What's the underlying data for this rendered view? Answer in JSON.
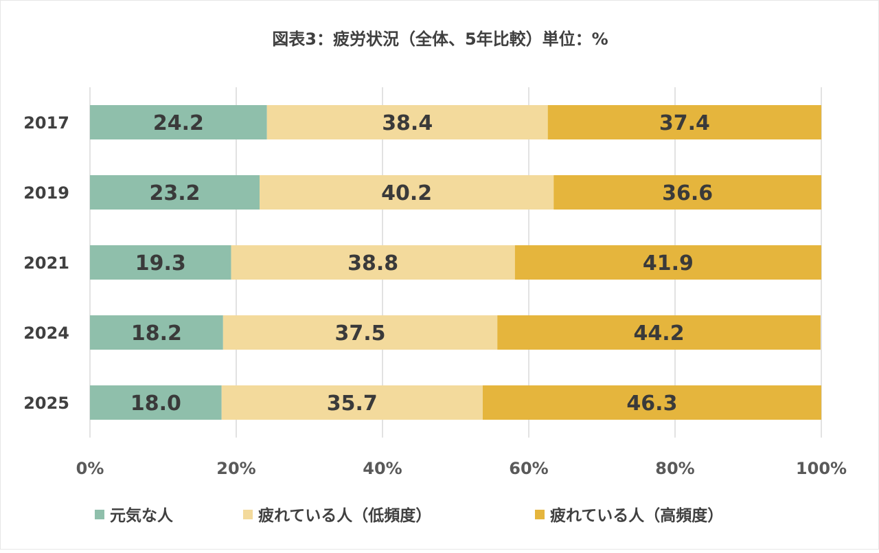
{
  "chart_data": {
    "type": "bar",
    "orientation": "horizontal",
    "stacked": true,
    "title": "図表3：疲労状況（全体、5年比較）単位：%",
    "categories": [
      "2017",
      "2019",
      "2021",
      "2024",
      "2025"
    ],
    "series": [
      {
        "name": "元気な人",
        "color": "#8fbfab",
        "values": [
          24.2,
          23.2,
          19.3,
          18.2,
          18.0
        ]
      },
      {
        "name": "疲れている人（低頻度）",
        "color": "#f3da9c",
        "values": [
          38.4,
          40.2,
          38.8,
          37.5,
          35.7
        ]
      },
      {
        "name": "疲れている人（高頻度）",
        "color": "#e5b53d",
        "values": [
          37.4,
          36.6,
          41.9,
          44.2,
          46.3
        ]
      }
    ],
    "data_labels": [
      "24.2",
      "23.2",
      "19.3",
      "18.2",
      "18.0",
      "38.4",
      "40.2",
      "38.8",
      "37.5",
      "35.7",
      "37.4",
      "36.6",
      "41.9",
      "44.2",
      "46.3"
    ],
    "xlim": [
      0,
      100
    ],
    "xticks": [
      "0%",
      "20%",
      "40%",
      "60%",
      "80%",
      "100%"
    ],
    "grid": true,
    "legend_position": "bottom",
    "xlabel": "",
    "ylabel": ""
  }
}
